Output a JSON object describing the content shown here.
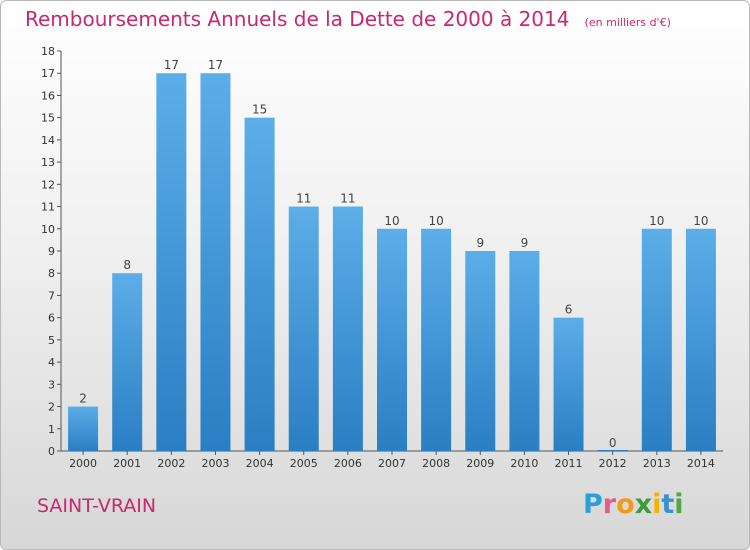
{
  "title": "Remboursements Annuels de la Dette de 2000 à 2014",
  "unit": "(en milliers d'€)",
  "commune": "SAINT-VRAIN",
  "logo": {
    "p": "P",
    "r": "r",
    "o": "o",
    "x": "x",
    "i1": "i",
    "t": "t",
    "i2": "i"
  },
  "colors": {
    "bar": "#3d8fd3",
    "title": "#c8286e"
  },
  "chart_data": {
    "type": "bar",
    "title": "Remboursements Annuels de la Dette de 2000 à 2014",
    "subtitle": "(en milliers d'€)",
    "categories": [
      "2000",
      "2001",
      "2002",
      "2003",
      "2004",
      "2005",
      "2006",
      "2007",
      "2008",
      "2009",
      "2010",
      "2011",
      "2012",
      "2013",
      "2014"
    ],
    "values": [
      2,
      8,
      17,
      17,
      15,
      11,
      11,
      10,
      10,
      9,
      9,
      6,
      0,
      10,
      10
    ],
    "data_labels": [
      "2",
      "8",
      "17",
      "17",
      "15",
      "11",
      "11",
      "10",
      "10",
      "9",
      "9",
      "6",
      "0",
      "10",
      "10"
    ],
    "yticks": [
      "0",
      "1",
      "2",
      "3",
      "4",
      "5",
      "6",
      "7",
      "8",
      "9",
      "10",
      "11",
      "12",
      "13",
      "14",
      "15",
      "16",
      "17",
      "18"
    ],
    "ylim": [
      0,
      18
    ],
    "grid": false,
    "legend": "none"
  }
}
